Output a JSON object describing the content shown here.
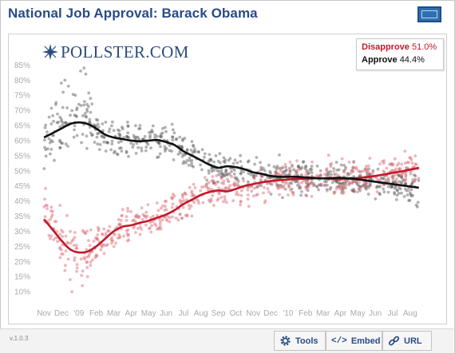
{
  "title": "National Job Approval: Barack Obama",
  "logo_text": "POLLSTER.COM",
  "legend": {
    "disapprove_label": "Disapprove",
    "disapprove_value": "51.0%",
    "approve_label": "Approve",
    "approve_value": "44.4%"
  },
  "footer": {
    "version": "v.1.0.3",
    "tools_label": "Tools",
    "embed_label": "Embed",
    "url_label": "URL"
  },
  "colors": {
    "approve": "#111111",
    "disapprove": "#c0192b",
    "approve_points": "#555555",
    "disapprove_points": "#e07a84"
  },
  "chart_data": {
    "type": "scatter",
    "title": "National Job Approval: Barack Obama",
    "ylim": [
      5,
      88
    ],
    "y_ticks": [
      "85%",
      "80%",
      "75%",
      "70%",
      "65%",
      "60%",
      "55%",
      "50%",
      "45%",
      "40%",
      "35%",
      "30%",
      "25%",
      "20%",
      "15%",
      "10%"
    ],
    "x_ticks": [
      "Nov",
      "Dec",
      "'09",
      "Feb",
      "Mar",
      "Apr",
      "May",
      "Jun",
      "Jul",
      "Aug",
      "Sep",
      "Oct",
      "Nov",
      "Dec",
      "'10",
      "Feb",
      "Mar",
      "Apr",
      "May",
      "Jun",
      "Jul",
      "Aug"
    ],
    "x_tick_months": [
      0,
      1,
      2,
      3,
      4,
      5,
      6,
      7,
      8,
      9,
      10,
      11,
      12,
      13,
      14,
      15,
      16,
      17,
      18,
      19,
      20,
      21
    ],
    "xlim": [
      -0.6,
      22.2
    ],
    "series": [
      {
        "name": "Approve",
        "values_x": [
          0,
          0.5,
          1,
          1.5,
          2,
          2.5,
          3,
          3.5,
          4,
          4.5,
          5,
          5.5,
          6,
          6.5,
          7,
          7.5,
          8,
          8.5,
          9,
          9.5,
          10,
          10.5,
          11,
          11.5,
          12,
          12.5,
          13,
          13.5,
          14,
          14.5,
          15,
          15.5,
          16,
          16.5,
          17,
          17.5,
          18,
          18.5,
          19,
          19.5,
          20,
          20.5,
          21,
          21.5
        ],
        "values_y": [
          61,
          62.5,
          64,
          65.5,
          66,
          65.5,
          64,
          62,
          61,
          60.5,
          60,
          59.8,
          60,
          60.2,
          59.5,
          58.5,
          56.5,
          55,
          53.5,
          52,
          51,
          51.5,
          51.2,
          50.5,
          49.5,
          49,
          48.3,
          48,
          48,
          48,
          47.8,
          47.6,
          47.5,
          47.6,
          47.7,
          47.5,
          47.2,
          46.8,
          46.4,
          46,
          45.6,
          45.2,
          44.8,
          44.4
        ]
      },
      {
        "name": "Disapprove",
        "values_x": [
          0,
          0.5,
          1,
          1.5,
          2,
          2.5,
          3,
          3.5,
          4,
          4.5,
          5,
          5.5,
          6,
          6.5,
          7,
          7.5,
          8,
          8.5,
          9,
          9.5,
          10,
          10.5,
          11,
          11.5,
          12,
          12.5,
          13,
          13.5,
          14,
          14.5,
          15,
          15.5,
          16,
          16.5,
          17,
          17.5,
          18,
          18.5,
          19,
          19.5,
          20,
          20.5,
          21,
          21.5
        ],
        "values_y": [
          34,
          30.5,
          27,
          24,
          23,
          23.3,
          25,
          27.5,
          30,
          31.5,
          32,
          32.8,
          33.5,
          34.5,
          35.5,
          37,
          39,
          40.5,
          42,
          43,
          43.5,
          43.2,
          44,
          45,
          45.6,
          46.2,
          46.6,
          46.9,
          47.1,
          47.3,
          47.4,
          47.5,
          47.5,
          47.3,
          47.2,
          47.4,
          47.6,
          47.9,
          48.3,
          48.8,
          49.3,
          49.8,
          50.4,
          51.0
        ]
      }
    ]
  }
}
